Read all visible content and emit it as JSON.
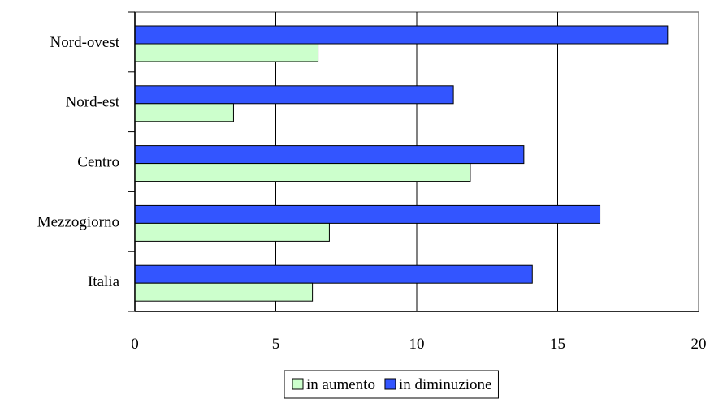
{
  "chart_data": {
    "type": "bar",
    "orientation": "horizontal",
    "title": "",
    "xlabel": "",
    "ylabel": "",
    "categories": [
      "Nord-ovest",
      "Nord-est",
      "Centro",
      "Mezzogiorno",
      "Italia"
    ],
    "series": [
      {
        "name": "in diminuzione",
        "values": [
          18.9,
          11.3,
          13.8,
          16.5,
          14.1
        ],
        "color": "#3355ff"
      },
      {
        "name": "in aumento",
        "values": [
          6.5,
          3.5,
          11.9,
          6.9,
          6.3
        ],
        "color": "#ccffcc"
      }
    ],
    "xlim": [
      0,
      20
    ],
    "xticks": [
      0,
      5,
      10,
      15,
      20
    ],
    "grid": "vertical",
    "legend": "bottom",
    "legend_order": [
      "in aumento",
      "in diminuzione"
    ]
  }
}
